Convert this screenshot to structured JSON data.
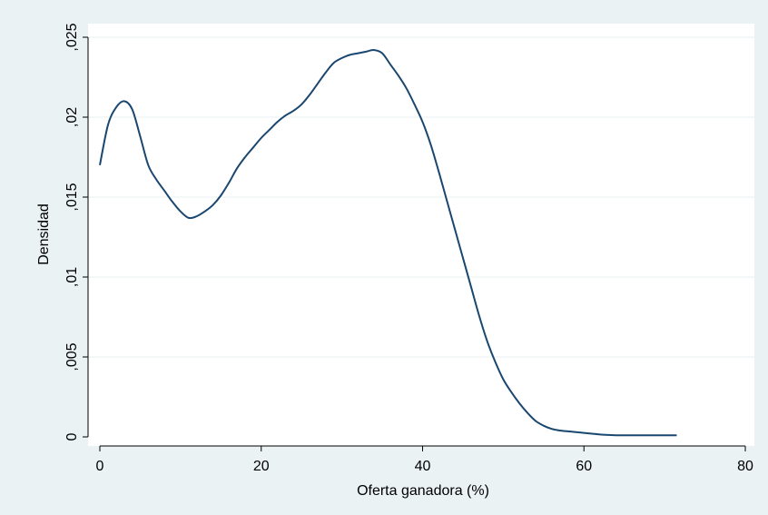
{
  "chart_data": {
    "type": "line",
    "title": "",
    "xlabel": "Oferta ganadora (%)",
    "ylabel": "Densidad",
    "xlim": [
      0,
      80
    ],
    "ylim": [
      0,
      0.025
    ],
    "x_ticks": [
      0,
      20,
      40,
      60,
      80
    ],
    "x_tick_labels": [
      "0",
      "20",
      "40",
      "60",
      "80"
    ],
    "y_ticks": [
      0,
      0.005,
      0.01,
      0.015,
      0.02,
      0.025
    ],
    "y_tick_labels": [
      "0",
      ",005",
      ",01",
      ",015",
      ",02",
      ",025"
    ],
    "grid": "horizontal",
    "legend": "none",
    "colors": {
      "outer_background": "#eaf2f3",
      "plot_background": "#ffffff",
      "gridline": "#eaf2f3",
      "line": "#1a476f"
    },
    "series": [
      {
        "x": [
          0,
          1,
          2,
          3,
          4,
          5,
          6,
          7,
          8,
          9,
          10,
          11,
          12,
          13,
          14,
          15,
          16,
          17,
          18,
          19,
          20,
          21,
          22,
          23,
          24,
          25,
          26,
          27,
          28,
          29,
          30,
          31,
          32,
          33,
          34,
          35,
          36,
          37,
          38,
          39,
          40,
          41,
          42,
          43,
          44,
          45,
          46,
          47,
          48,
          49,
          50,
          51,
          52,
          53,
          54,
          55,
          56,
          57,
          58,
          59,
          60,
          61,
          62,
          63,
          64,
          65,
          66,
          67,
          68,
          69,
          70,
          71.5
        ],
        "y": [
          0.017,
          0.0195,
          0.0206,
          0.021,
          0.0205,
          0.0188,
          0.017,
          0.0161,
          0.0154,
          0.0147,
          0.0141,
          0.0137,
          0.0138,
          0.0141,
          0.0145,
          0.0151,
          0.0159,
          0.0168,
          0.0175,
          0.0181,
          0.0187,
          0.0192,
          0.0197,
          0.0201,
          0.0204,
          0.0208,
          0.0214,
          0.0221,
          0.0228,
          0.0234,
          0.0237,
          0.0239,
          0.024,
          0.0241,
          0.0242,
          0.024,
          0.0233,
          0.0226,
          0.0218,
          0.0208,
          0.0197,
          0.0183,
          0.0166,
          0.0148,
          0.013,
          0.0112,
          0.0094,
          0.0076,
          0.006,
          0.0047,
          0.0036,
          0.0028,
          0.0021,
          0.0015,
          0.001,
          0.0007,
          0.0005,
          0.0004,
          0.00035,
          0.0003,
          0.00025,
          0.0002,
          0.00015,
          0.00012,
          0.0001,
          0.0001,
          0.0001,
          0.0001,
          0.0001,
          0.0001,
          0.0001,
          0.0001
        ]
      }
    ]
  }
}
